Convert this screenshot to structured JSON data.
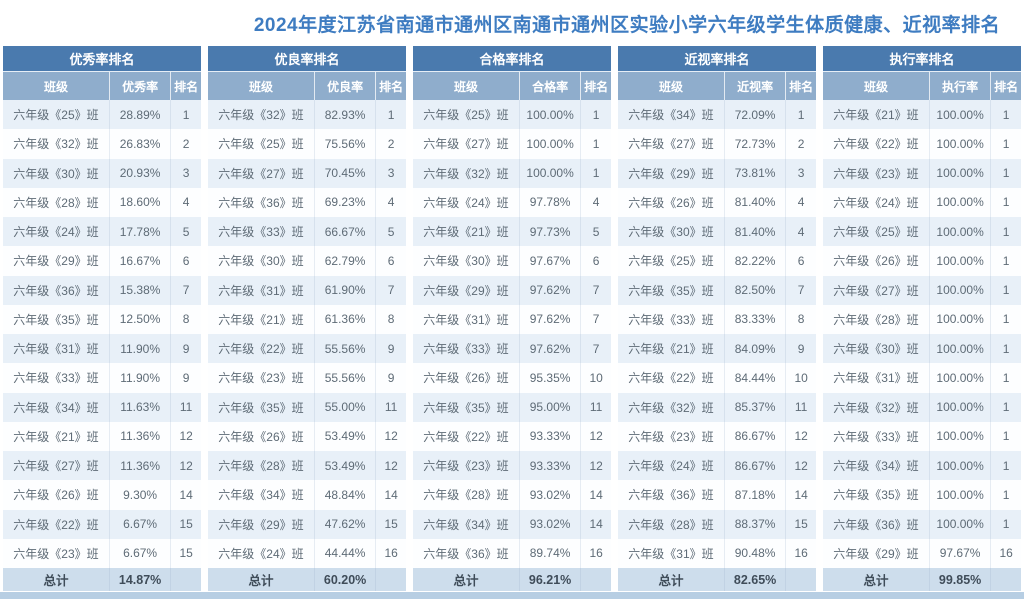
{
  "page": {
    "title": "2024年度江苏省南通市通州区南通市通州区实验小学六年级学生体质健康、近视率排名"
  },
  "colors": {
    "title_text": "#3E7CC1",
    "group_header_bg": "#4A7AAE",
    "column_header_bg": "#8FADCC",
    "row_odd_bg": "#E8F0F8",
    "row_even_bg": "#FDFEFF",
    "total_row_bg": "#CDDDEC",
    "bottom_bar_bg": "#B7CEE3"
  },
  "tables": [
    {
      "id": "excellent-rate",
      "group_header": "优秀率排名",
      "columns": [
        "班级",
        "优秀率",
        "排名"
      ],
      "rows": [
        [
          "六年级《25》班",
          "28.89%",
          "1"
        ],
        [
          "六年级《32》班",
          "26.83%",
          "2"
        ],
        [
          "六年级《30》班",
          "20.93%",
          "3"
        ],
        [
          "六年级《28》班",
          "18.60%",
          "4"
        ],
        [
          "六年级《24》班",
          "17.78%",
          "5"
        ],
        [
          "六年级《29》班",
          "16.67%",
          "6"
        ],
        [
          "六年级《36》班",
          "15.38%",
          "7"
        ],
        [
          "六年级《35》班",
          "12.50%",
          "8"
        ],
        [
          "六年级《31》班",
          "11.90%",
          "9"
        ],
        [
          "六年级《33》班",
          "11.90%",
          "9"
        ],
        [
          "六年级《34》班",
          "11.63%",
          "11"
        ],
        [
          "六年级《21》班",
          "11.36%",
          "12"
        ],
        [
          "六年级《27》班",
          "11.36%",
          "12"
        ],
        [
          "六年级《26》班",
          "9.30%",
          "14"
        ],
        [
          "六年级《22》班",
          "6.67%",
          "15"
        ],
        [
          "六年级《23》班",
          "6.67%",
          "15"
        ]
      ],
      "total": {
        "label": "总计",
        "value": "14.87%",
        "rank": ""
      }
    },
    {
      "id": "good-rate",
      "group_header": "优良率排名",
      "columns": [
        "班级",
        "优良率",
        "排名"
      ],
      "rows": [
        [
          "六年级《32》班",
          "82.93%",
          "1"
        ],
        [
          "六年级《25》班",
          "75.56%",
          "2"
        ],
        [
          "六年级《27》班",
          "70.45%",
          "3"
        ],
        [
          "六年级《36》班",
          "69.23%",
          "4"
        ],
        [
          "六年级《33》班",
          "66.67%",
          "5"
        ],
        [
          "六年级《30》班",
          "62.79%",
          "6"
        ],
        [
          "六年级《31》班",
          "61.90%",
          "7"
        ],
        [
          "六年级《21》班",
          "61.36%",
          "8"
        ],
        [
          "六年级《22》班",
          "55.56%",
          "9"
        ],
        [
          "六年级《23》班",
          "55.56%",
          "9"
        ],
        [
          "六年级《35》班",
          "55.00%",
          "11"
        ],
        [
          "六年级《26》班",
          "53.49%",
          "12"
        ],
        [
          "六年级《28》班",
          "53.49%",
          "12"
        ],
        [
          "六年级《34》班",
          "48.84%",
          "14"
        ],
        [
          "六年级《29》班",
          "47.62%",
          "15"
        ],
        [
          "六年级《24》班",
          "44.44%",
          "16"
        ]
      ],
      "total": {
        "label": "总计",
        "value": "60.20%",
        "rank": ""
      }
    },
    {
      "id": "pass-rate",
      "group_header": "合格率排名",
      "columns": [
        "班级",
        "合格率",
        "排名"
      ],
      "rows": [
        [
          "六年级《25》班",
          "100.00%",
          "1"
        ],
        [
          "六年级《27》班",
          "100.00%",
          "1"
        ],
        [
          "六年级《32》班",
          "100.00%",
          "1"
        ],
        [
          "六年级《24》班",
          "97.78%",
          "4"
        ],
        [
          "六年级《21》班",
          "97.73%",
          "5"
        ],
        [
          "六年级《30》班",
          "97.67%",
          "6"
        ],
        [
          "六年级《29》班",
          "97.62%",
          "7"
        ],
        [
          "六年级《31》班",
          "97.62%",
          "7"
        ],
        [
          "六年级《33》班",
          "97.62%",
          "7"
        ],
        [
          "六年级《26》班",
          "95.35%",
          "10"
        ],
        [
          "六年级《35》班",
          "95.00%",
          "11"
        ],
        [
          "六年级《22》班",
          "93.33%",
          "12"
        ],
        [
          "六年级《23》班",
          "93.33%",
          "12"
        ],
        [
          "六年级《28》班",
          "93.02%",
          "14"
        ],
        [
          "六年级《34》班",
          "93.02%",
          "14"
        ],
        [
          "六年级《36》班",
          "89.74%",
          "16"
        ]
      ],
      "total": {
        "label": "总计",
        "value": "96.21%",
        "rank": ""
      }
    },
    {
      "id": "myopia-rate",
      "group_header": "近视率排名",
      "columns": [
        "班级",
        "近视率",
        "排名"
      ],
      "rows": [
        [
          "六年级《34》班",
          "72.09%",
          "1"
        ],
        [
          "六年级《27》班",
          "72.73%",
          "2"
        ],
        [
          "六年级《29》班",
          "73.81%",
          "3"
        ],
        [
          "六年级《26》班",
          "81.40%",
          "4"
        ],
        [
          "六年级《30》班",
          "81.40%",
          "4"
        ],
        [
          "六年级《25》班",
          "82.22%",
          "6"
        ],
        [
          "六年级《35》班",
          "82.50%",
          "7"
        ],
        [
          "六年级《33》班",
          "83.33%",
          "8"
        ],
        [
          "六年级《21》班",
          "84.09%",
          "9"
        ],
        [
          "六年级《22》班",
          "84.44%",
          "10"
        ],
        [
          "六年级《32》班",
          "85.37%",
          "11"
        ],
        [
          "六年级《23》班",
          "86.67%",
          "12"
        ],
        [
          "六年级《24》班",
          "86.67%",
          "12"
        ],
        [
          "六年级《36》班",
          "87.18%",
          "14"
        ],
        [
          "六年级《28》班",
          "88.37%",
          "15"
        ],
        [
          "六年级《31》班",
          "90.48%",
          "16"
        ]
      ],
      "total": {
        "label": "总计",
        "value": "82.65%",
        "rank": ""
      }
    },
    {
      "id": "execution-rate",
      "group_header": "执行率排名",
      "columns": [
        "班级",
        "执行率",
        "排名"
      ],
      "rows": [
        [
          "六年级《21》班",
          "100.00%",
          "1"
        ],
        [
          "六年级《22》班",
          "100.00%",
          "1"
        ],
        [
          "六年级《23》班",
          "100.00%",
          "1"
        ],
        [
          "六年级《24》班",
          "100.00%",
          "1"
        ],
        [
          "六年级《25》班",
          "100.00%",
          "1"
        ],
        [
          "六年级《26》班",
          "100.00%",
          "1"
        ],
        [
          "六年级《27》班",
          "100.00%",
          "1"
        ],
        [
          "六年级《28》班",
          "100.00%",
          "1"
        ],
        [
          "六年级《30》班",
          "100.00%",
          "1"
        ],
        [
          "六年级《31》班",
          "100.00%",
          "1"
        ],
        [
          "六年级《32》班",
          "100.00%",
          "1"
        ],
        [
          "六年级《33》班",
          "100.00%",
          "1"
        ],
        [
          "六年级《34》班",
          "100.00%",
          "1"
        ],
        [
          "六年级《35》班",
          "100.00%",
          "1"
        ],
        [
          "六年级《36》班",
          "100.00%",
          "1"
        ],
        [
          "六年级《29》班",
          "97.67%",
          "16"
        ]
      ],
      "total": {
        "label": "总计",
        "value": "99.85%",
        "rank": ""
      }
    }
  ]
}
